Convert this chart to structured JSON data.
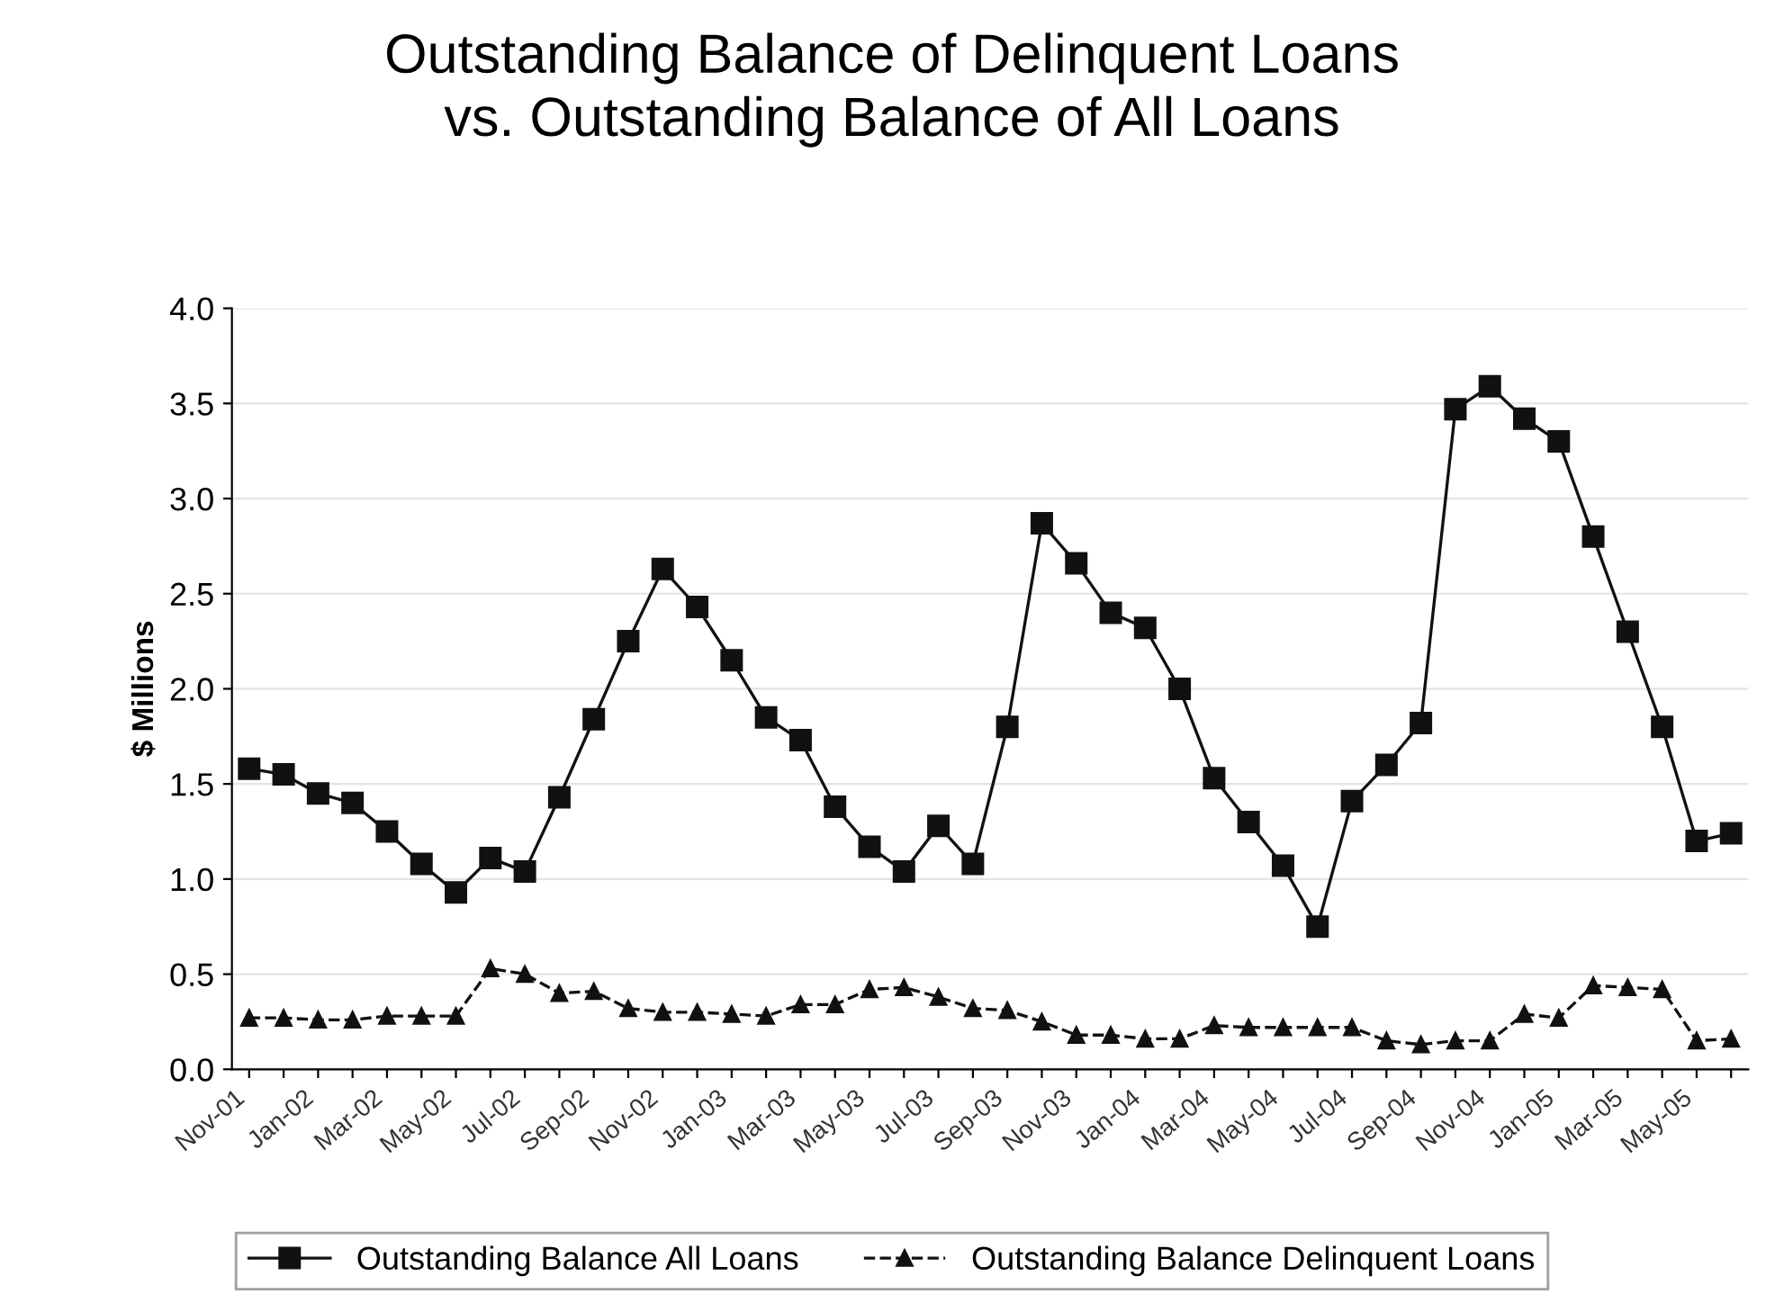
{
  "chart_data": {
    "type": "line",
    "title": "Outstanding Balance of Delinquent Loans\nvs. Outstanding Balance of All Loans",
    "ylabel": "$ Millions",
    "categories": [
      "Nov-01",
      null,
      "Jan-02",
      null,
      "Mar-02",
      null,
      "May-02",
      null,
      "Jul-02",
      null,
      "Sep-02",
      null,
      "Nov-02",
      null,
      "Jan-03",
      null,
      "Mar-03",
      null,
      "May-03",
      null,
      "Jul-03",
      null,
      "Sep-03",
      null,
      "Nov-03",
      null,
      "Jan-04",
      null,
      "Mar-04",
      null,
      "May-04",
      null,
      "Jul-04",
      null,
      "Sep-04",
      null,
      "Nov-04",
      null,
      "Jan-05",
      null,
      "Mar-05",
      null,
      "May-05",
      null
    ],
    "series": [
      {
        "name": "Outstanding Balance All Loans",
        "color": "#111111",
        "marker": "square",
        "line_style": "solid",
        "values": [
          1.58,
          1.55,
          1.45,
          1.4,
          1.25,
          1.08,
          0.93,
          1.11,
          1.04,
          1.43,
          1.84,
          2.25,
          2.63,
          2.43,
          2.15,
          1.85,
          1.73,
          1.38,
          1.17,
          1.04,
          1.28,
          1.08,
          1.8,
          2.87,
          2.66,
          2.4,
          2.32,
          2.0,
          1.53,
          1.3,
          1.07,
          0.75,
          1.41,
          1.6,
          1.82,
          3.47,
          3.59,
          3.42,
          3.3,
          2.8,
          2.3,
          1.8,
          1.2,
          1.24
        ]
      },
      {
        "name": "Outstanding Balance Delinquent Loans",
        "color": "#111111",
        "marker": "triangle",
        "line_style": "dashed",
        "values": [
          0.27,
          0.27,
          0.26,
          0.26,
          0.28,
          0.28,
          0.28,
          0.53,
          0.5,
          0.4,
          0.41,
          0.32,
          0.3,
          0.3,
          0.29,
          0.28,
          0.34,
          0.34,
          0.42,
          0.43,
          0.38,
          0.32,
          0.31,
          0.25,
          0.18,
          0.18,
          0.16,
          0.16,
          0.23,
          0.22,
          0.22,
          0.22,
          0.22,
          0.15,
          0.13,
          0.15,
          0.15,
          0.29,
          0.27,
          0.44,
          0.43,
          0.42,
          0.15,
          0.16
        ]
      }
    ],
    "ylim": [
      0,
      4
    ],
    "yticks": [
      {
        "value": 0,
        "label": "0.0"
      },
      {
        "value": 0.5,
        "label": "0.5"
      },
      {
        "value": 1,
        "label": "1.0"
      },
      {
        "value": 1.5,
        "label": "1.5"
      },
      {
        "value": 2,
        "label": "2.0"
      },
      {
        "value": 2.5,
        "label": "2.5"
      },
      {
        "value": 3,
        "label": "3.0"
      },
      {
        "value": 3.5,
        "label": "3.5"
      },
      {
        "value": 4,
        "label": "4.0"
      }
    ],
    "grid": "y",
    "legend": "bottom"
  }
}
